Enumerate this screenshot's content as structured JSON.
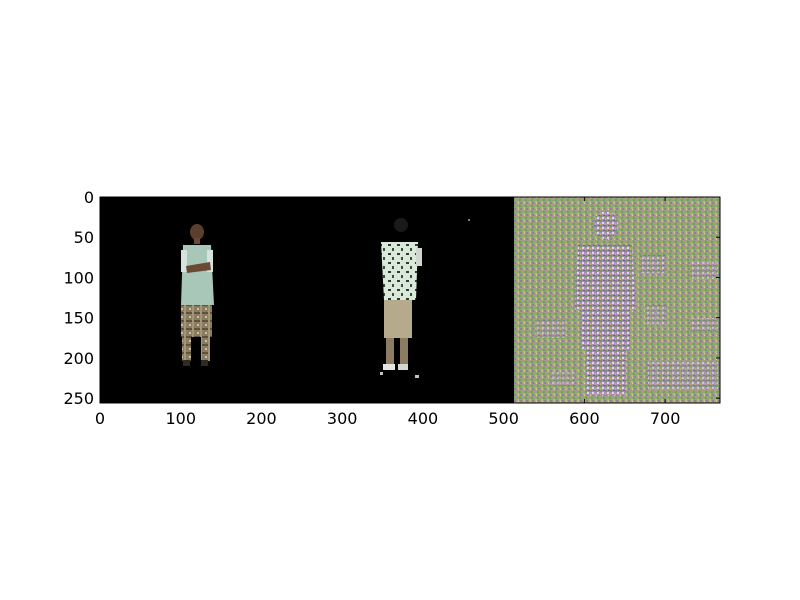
{
  "chart_data": {
    "type": "image",
    "xlim": [
      0,
      768
    ],
    "ylim": [
      256,
      0
    ],
    "x_ticks": [
      0,
      100,
      200,
      300,
      400,
      500,
      600,
      700
    ],
    "y_ticks": [
      0,
      50,
      100,
      150,
      200,
      250
    ],
    "grid": false,
    "panels": [
      {
        "content": "person-front-segmented",
        "x_range": [
          0,
          256
        ],
        "background": "#000000"
      },
      {
        "content": "person-back-segmented",
        "x_range": [
          256,
          512
        ],
        "background": "#000000"
      },
      {
        "content": "noisy-pattern",
        "x_range": [
          512,
          768
        ],
        "background": "#8fa672"
      }
    ]
  }
}
